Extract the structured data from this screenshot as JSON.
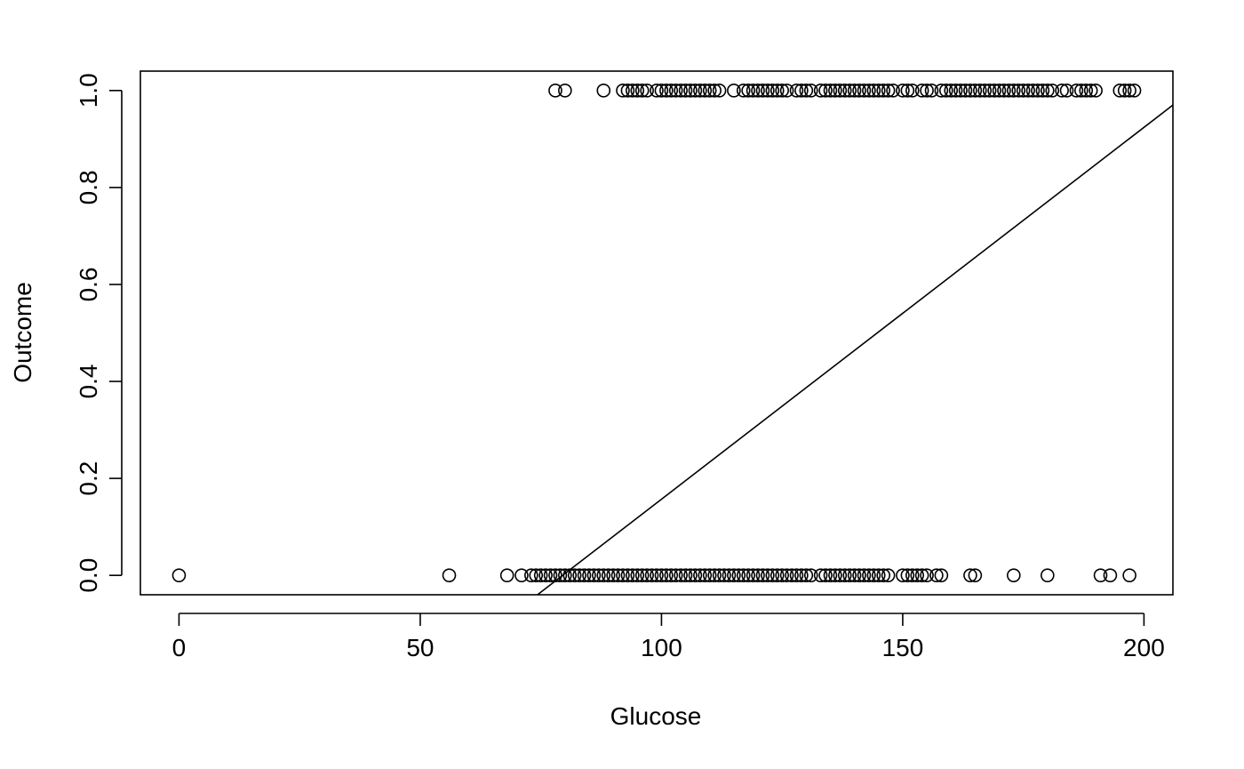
{
  "chart_data": {
    "type": "scatter",
    "title": "",
    "xlabel": "Glucose",
    "ylabel": "Outcome",
    "xlim": [
      -8,
      206
    ],
    "ylim": [
      -0.04,
      1.04
    ],
    "xticks": [
      0,
      50,
      100,
      150,
      200
    ],
    "xtick_labels": [
      "0",
      "50",
      "100",
      "150",
      "200"
    ],
    "yticks": [
      0.0,
      0.2,
      0.4,
      0.6,
      0.8,
      1.0
    ],
    "ytick_labels": [
      "0.0",
      "0.2",
      "0.4",
      "0.6",
      "0.8",
      "1.0"
    ],
    "grid": false,
    "series": [
      {
        "marker": "open-circle",
        "x_outcome_1": [
          78,
          80,
          88,
          92,
          93,
          94,
          95,
          96,
          97,
          99,
          100,
          101,
          102,
          103,
          104,
          105,
          106,
          107,
          108,
          109,
          110,
          111,
          112,
          115,
          117,
          118,
          119,
          120,
          121,
          122,
          123,
          124,
          125,
          126,
          128,
          129,
          130,
          131,
          133,
          134,
          135,
          136,
          137,
          138,
          139,
          140,
          141,
          142,
          143,
          144,
          145,
          146,
          147,
          148,
          150,
          151,
          152,
          154,
          155,
          156,
          158,
          159,
          160,
          161,
          162,
          163,
          164,
          165,
          166,
          167,
          168,
          169,
          170,
          171,
          172,
          173,
          174,
          175,
          176,
          177,
          178,
          179,
          180,
          181,
          183,
          184,
          186,
          187,
          188,
          189,
          190,
          195,
          196,
          197,
          198
        ],
        "x_outcome_0": [
          0,
          56,
          68,
          71,
          73,
          74,
          75,
          76,
          77,
          78,
          79,
          80,
          81,
          82,
          83,
          84,
          85,
          86,
          87,
          88,
          89,
          90,
          91,
          92,
          93,
          94,
          95,
          96,
          97,
          98,
          99,
          100,
          101,
          102,
          103,
          104,
          105,
          106,
          107,
          108,
          109,
          110,
          111,
          112,
          113,
          114,
          115,
          116,
          117,
          118,
          119,
          120,
          121,
          122,
          123,
          124,
          125,
          126,
          127,
          128,
          129,
          130,
          131,
          133,
          134,
          135,
          136,
          137,
          138,
          139,
          140,
          141,
          142,
          143,
          144,
          145,
          146,
          147,
          150,
          151,
          152,
          153,
          154,
          155,
          157,
          158,
          164,
          165,
          173,
          180,
          191,
          193,
          197
        ]
      }
    ],
    "fit_line": {
      "x": [
        74.3,
        206
      ],
      "y": [
        -0.04,
        0.97
      ]
    }
  }
}
